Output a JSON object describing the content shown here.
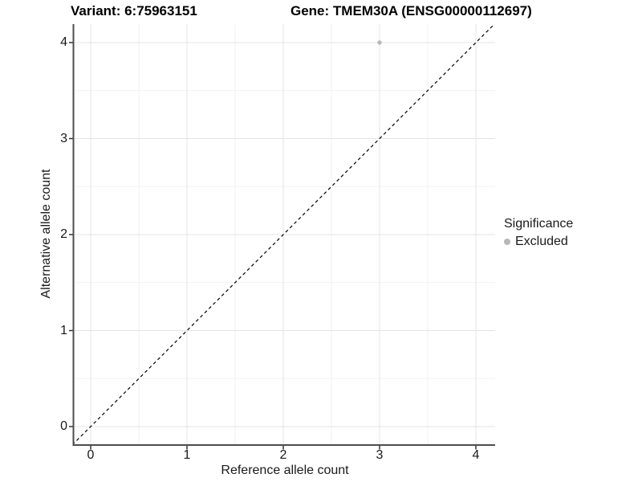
{
  "header": {
    "variant_title": "Variant: 6:75963151",
    "gene_title": "Gene: TMEM30A (ENSG00000112697)"
  },
  "chart_data": {
    "type": "scatter",
    "title_left": "Variant: 6:75963151",
    "title_right": "Gene: TMEM30A (ENSG00000112697)",
    "xlabel": "Reference allele count",
    "ylabel": "Alternative allele count",
    "xlim": [
      -0.17,
      4.2
    ],
    "ylim": [
      -0.17,
      4.2
    ],
    "xticks": [
      "0",
      "1",
      "2",
      "3",
      "4"
    ],
    "yticks": [
      "0",
      "1",
      "2",
      "3",
      "4"
    ],
    "xtick_values": [
      0,
      1,
      2,
      3,
      4
    ],
    "ytick_values": [
      0,
      1,
      2,
      3,
      4
    ],
    "minor_tick_values": [
      0.5,
      1.5,
      2.5,
      3.5
    ],
    "grid": "major+minor",
    "legend_position": "right",
    "series": [
      {
        "name": "Excluded",
        "marker": "circle",
        "color": "#b8b8b8",
        "points": [
          {
            "x": 3,
            "y": 4
          }
        ]
      }
    ],
    "reference_line": {
      "equation": "y = x",
      "style": "dashed",
      "color": "#000000"
    }
  },
  "legend": {
    "title": "Significance",
    "items": [
      {
        "label": "Excluded",
        "color": "#b8b8b8",
        "marker": "circle"
      }
    ]
  },
  "colors": {
    "background": "#ffffff",
    "grid_major": "#e4e4e4",
    "grid_minor": "#f2f2f2",
    "axis_line": "#4d4d4d",
    "tick_mark": "#333333",
    "point": "#b8b8b8",
    "text": "#000000"
  }
}
